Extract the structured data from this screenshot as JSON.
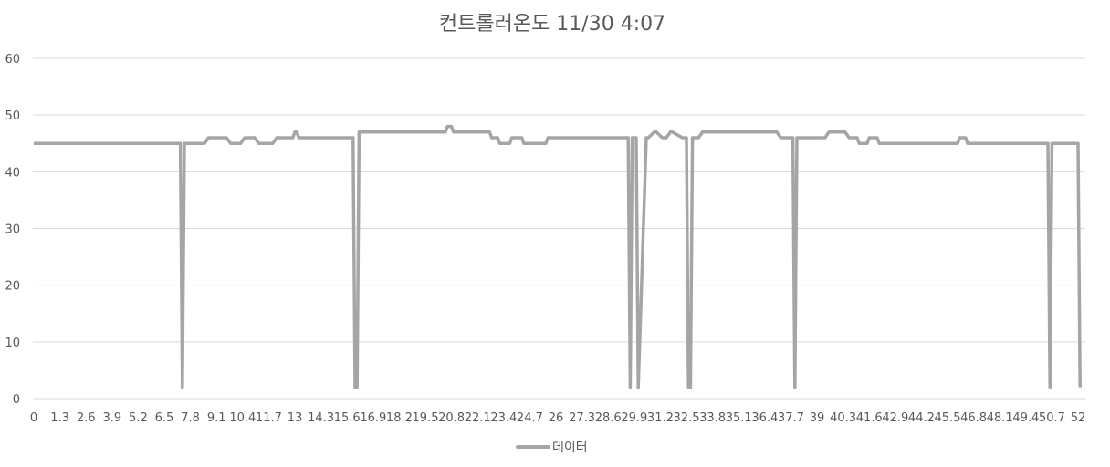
{
  "chart_data": {
    "type": "line",
    "title": "컨트롤러온도 11/30 4:07",
    "xlabel": "",
    "ylabel": "",
    "ylim": [
      0,
      60
    ],
    "y_ticks": [
      "0",
      "10",
      "20",
      "30",
      "40",
      "50",
      "60"
    ],
    "x_tick_labels": [
      "0",
      "1.3",
      "2.6",
      "3.9",
      "5.2",
      "6.5",
      "7.8",
      "9.1",
      "10.4",
      "11.7",
      "13",
      "14.3",
      "15.6",
      "16.9",
      "18.2",
      "19.5",
      "20.8",
      "22.1",
      "23.4",
      "24.7",
      "26",
      "27.3",
      "28.6",
      "29.9",
      "31.2",
      "32.5",
      "33.8",
      "35.1",
      "36.4",
      "37.7",
      "39",
      "40.3",
      "41.6",
      "42.9",
      "44.2",
      "45.5",
      "46.8",
      "48.1",
      "49.4",
      "50.7",
      "52"
    ],
    "grid": true,
    "legend_position": "bottom",
    "colors": {
      "series": "#a5a5a5",
      "grid": "#d9d9d9",
      "text": "#595959"
    },
    "series": [
      {
        "name": "데이터",
        "x": [
          0,
          7.3,
          7.4,
          7.5,
          8.5,
          8.7,
          9.6,
          9.8,
          10.3,
          10.5,
          11.0,
          11.2,
          11.9,
          12.1,
          12.9,
          13.0,
          13.1,
          13.2,
          15.9,
          16.0,
          16.1,
          16.2,
          20.5,
          20.6,
          20.8,
          20.9,
          22.7,
          22.8,
          23.1,
          23.2,
          23.7,
          23.8,
          24.3,
          24.4,
          25.5,
          25.6,
          29.6,
          29.7,
          29.8,
          30.0,
          30.1,
          30.5,
          30.6,
          30.9,
          31.0,
          31.3,
          31.5,
          31.7,
          31.8,
          32.3,
          32.5,
          32.6,
          32.7,
          32.8,
          33.1,
          33.3,
          37.0,
          37.2,
          37.8,
          37.9,
          38.0,
          39.4,
          39.6,
          40.4,
          40.6,
          41.0,
          41.1,
          41.5,
          41.6,
          42.0,
          42.1,
          46.0,
          46.1,
          46.4,
          46.5,
          50.5,
          50.6,
          50.7,
          52.0,
          52.1
        ],
        "values": [
          45,
          45,
          2,
          45,
          45,
          46,
          46,
          45,
          45,
          46,
          46,
          45,
          45,
          46,
          46,
          47,
          47,
          46,
          46,
          2,
          2,
          47,
          47,
          48,
          48,
          47,
          47,
          46,
          46,
          45,
          45,
          46,
          46,
          45,
          45,
          46,
          46,
          2,
          46,
          46,
          2,
          46,
          46,
          47,
          47,
          46,
          46,
          47,
          47,
          46,
          46,
          2,
          2,
          46,
          46,
          47,
          47,
          46,
          46,
          2,
          46,
          46,
          47,
          47,
          46,
          46,
          45,
          45,
          46,
          46,
          45,
          45,
          46,
          46,
          45,
          45,
          2,
          45,
          45,
          2
        ]
      }
    ]
  }
}
